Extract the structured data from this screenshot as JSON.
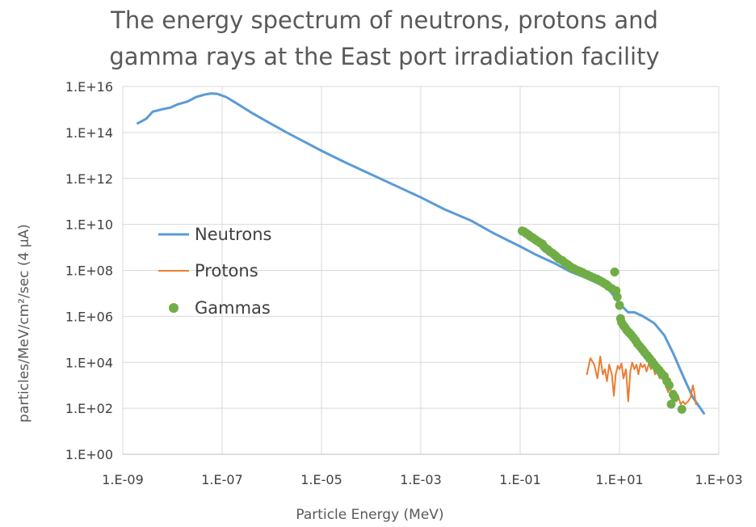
{
  "chart_data": {
    "type": "scatter",
    "title_lines": [
      "The energy spectrum of neutrons, protons and",
      "gamma rays at the East port irradiation facility"
    ],
    "xlabel": "Particle Energy (MeV)",
    "ylabel": "particles/MeV/cm²/sec (4 µA)",
    "xscale": "log",
    "yscale": "log",
    "xlim": [
      1e-09,
      1000
    ],
    "ylim": [
      1,
      1e+16
    ],
    "x_ticks": [
      "1.E-09",
      "1.E-07",
      "1.E-05",
      "1.E-03",
      "1.E-01",
      "1.E+01",
      "1.E+03"
    ],
    "y_ticks": [
      "1.E+00",
      "1.E+02",
      "1.E+04",
      "1.E+06",
      "1.E+08",
      "1.E+10",
      "1.E+12",
      "1.E+14",
      "1.E+16"
    ],
    "grid": true,
    "legend_position": "left",
    "series": [
      {
        "name": "Neutrons",
        "style": "line",
        "color": "#5B9BD5",
        "points": [
          [
            2e-09,
            250000000000000.0
          ],
          [
            3e-09,
            400000000000000.0
          ],
          [
            4e-09,
            800000000000000.0
          ],
          [
            6e-09,
            1000000000000000.0
          ],
          [
            9e-09,
            1200000000000000.0
          ],
          [
            1.3e-08,
            1700000000000000.0
          ],
          [
            2e-08,
            2200000000000000.0
          ],
          [
            3e-08,
            3500000000000000.0
          ],
          [
            4.5e-08,
            4500000000000000.0
          ],
          [
            6e-08,
            5000000000000000.0
          ],
          [
            8e-08,
            4800000000000000.0
          ],
          [
            1.2e-07,
            3500000000000000.0
          ],
          [
            2e-07,
            1800000000000000.0
          ],
          [
            4e-07,
            700000000000000.0
          ],
          [
            8e-07,
            300000000000000.0
          ],
          [
            2e-06,
            100000000000000.0
          ],
          [
            5e-06,
            35000000000000.0
          ],
          [
            1e-05,
            16000000000000.0
          ],
          [
            3e-05,
            5000000000000.0
          ],
          [
            0.0001,
            1500000000000.0
          ],
          [
            0.0003,
            500000000000.0
          ],
          [
            0.001,
            150000000000.0
          ],
          [
            0.003,
            45000000000.0
          ],
          [
            0.01,
            15000000000.0
          ],
          [
            0.03,
            4000000000.0
          ],
          [
            0.1,
            1100000000.0
          ],
          [
            0.2,
            500000000.0
          ],
          [
            0.5,
            200000000.0
          ],
          [
            1,
            90000000.0
          ],
          [
            2,
            50000000.0
          ],
          [
            4,
            25000000.0
          ],
          [
            6,
            15000000.0
          ],
          [
            8,
            7000000.0
          ],
          [
            10,
            3500000.0
          ],
          [
            15,
            1500000.0
          ],
          [
            20,
            1500000.0
          ],
          [
            30,
            1000000.0
          ],
          [
            50,
            500000.0
          ],
          [
            80,
            150000.0
          ],
          [
            120,
            25000.0
          ],
          [
            200,
            2000.0
          ],
          [
            300,
            300.0
          ],
          [
            500,
            60
          ]
        ]
      },
      {
        "name": "Protons",
        "style": "line",
        "color": "#ED7D31",
        "points": [
          [
            2.2,
            3000.0
          ],
          [
            2.6,
            15000.0
          ],
          [
            3.1,
            8000.0
          ],
          [
            3.6,
            2000.0
          ],
          [
            4.1,
            18000.0
          ],
          [
            4.6,
            3000.0
          ],
          [
            5.1,
            5000.0
          ],
          [
            5.6,
            1500.0
          ],
          [
            6.2,
            8000.0
          ],
          [
            7,
            3000.0
          ],
          [
            7.7,
            350.0
          ],
          [
            8.4,
            3000.0
          ],
          [
            9.2,
            7000.0
          ],
          [
            10,
            5000.0
          ],
          [
            11,
            9000.0
          ],
          [
            12,
            2000.0
          ],
          [
            13.5,
            5000.0
          ],
          [
            15,
            200.0
          ],
          [
            16.5,
            4000.0
          ],
          [
            18,
            10000.0
          ],
          [
            20,
            5000.0
          ],
          [
            22,
            8000.0
          ],
          [
            24,
            3000.0
          ],
          [
            26.5,
            9000.0
          ],
          [
            29,
            6000.0
          ],
          [
            32,
            8000.0
          ],
          [
            35,
            4000.0
          ],
          [
            39,
            9000.0
          ],
          [
            43,
            5000.0
          ],
          [
            47,
            7000.0
          ],
          [
            52,
            3000.0
          ],
          [
            58,
            5000.0
          ],
          [
            64,
            2000.0
          ],
          [
            71,
            3000.0
          ],
          [
            78,
            1500.0
          ],
          [
            86,
            1000.0
          ],
          [
            95,
            500.0
          ],
          [
            105,
            800.0
          ],
          [
            115,
            300.0
          ],
          [
            128,
            600.0
          ],
          [
            140,
            200.0
          ],
          [
            155,
            300.0
          ],
          [
            170,
            150.0
          ],
          [
            190,
            200.0
          ],
          [
            210,
            150.0
          ],
          [
            240,
            200.0
          ],
          [
            270,
            300.0
          ],
          [
            300,
            1000.0
          ],
          [
            320,
            500.0
          ],
          [
            345,
            150.0
          ]
        ]
      },
      {
        "name": "Gammas",
        "style": "markers",
        "color": "#70AD47",
        "points": [
          [
            0.11,
            5200000000.0
          ],
          [
            0.12,
            4800000000.0
          ],
          [
            0.13,
            4200000000.0
          ],
          [
            0.14,
            3800000000.0
          ],
          [
            0.15,
            3400000000.0
          ],
          [
            0.16,
            3000000000.0
          ],
          [
            0.18,
            2600000000.0
          ],
          [
            0.2,
            2200000000.0
          ],
          [
            0.22,
            1900000000.0
          ],
          [
            0.25,
            1600000000.0
          ],
          [
            0.28,
            1400000000.0
          ],
          [
            0.3,
            1100000000.0
          ],
          [
            0.33,
            900000000.0
          ],
          [
            0.36,
            800000000.0
          ],
          [
            0.4,
            650000000.0
          ],
          [
            0.45,
            550000000.0
          ],
          [
            0.5,
            460000000.0
          ],
          [
            0.55,
            380000000.0
          ],
          [
            0.6,
            320000000.0
          ],
          [
            0.7,
            270000000.0
          ],
          [
            0.8,
            210000000.0
          ],
          [
            0.9,
            180000000.0
          ],
          [
            1.0,
            150000000.0
          ],
          [
            1.1,
            130000000.0
          ],
          [
            1.2,
            120000000.0
          ],
          [
            1.4,
            100000000.0
          ],
          [
            1.6,
            90000000.0
          ],
          [
            1.8,
            80000000.0
          ],
          [
            2.0,
            70000000.0
          ],
          [
            2.3,
            62000000.0
          ],
          [
            2.6,
            55000000.0
          ],
          [
            3.0,
            48000000.0
          ],
          [
            3.5,
            42000000.0
          ],
          [
            4.0,
            36000000.0
          ],
          [
            4.5,
            31000000.0
          ],
          [
            5.0,
            27000000.0
          ],
          [
            5.5,
            24000000.0
          ],
          [
            6.0,
            20000000.0
          ],
          [
            7.0,
            16000000.0
          ],
          [
            8.0,
            85000000.0
          ],
          [
            8.5,
            13000000.0
          ],
          [
            9.0,
            7000000.0
          ],
          [
            10,
            3000000.0
          ],
          [
            10.5,
            800000.0
          ],
          [
            11,
            550000.0
          ],
          [
            12,
            400000.0
          ],
          [
            13,
            320000.0
          ],
          [
            14,
            250000.0
          ],
          [
            15.5,
            200000.0
          ],
          [
            17,
            160000.0
          ],
          [
            19,
            120000.0
          ],
          [
            21,
            90000.0
          ],
          [
            23,
            65000.0
          ],
          [
            26,
            48000.0
          ],
          [
            29,
            36000.0
          ],
          [
            32,
            27000.0
          ],
          [
            36,
            20000.0
          ],
          [
            40,
            15000.0
          ],
          [
            45,
            11000.0
          ],
          [
            50,
            8000.0
          ],
          [
            56,
            6000.0
          ],
          [
            63,
            4500.0
          ],
          [
            70,
            3300.0
          ],
          [
            80,
            2500.0
          ],
          [
            90,
            1500.0
          ],
          [
            100,
            1000.0
          ],
          [
            120,
            400.0
          ],
          [
            130,
            300.0
          ],
          [
            110,
            150
          ],
          [
            180,
            90
          ]
        ]
      }
    ]
  }
}
